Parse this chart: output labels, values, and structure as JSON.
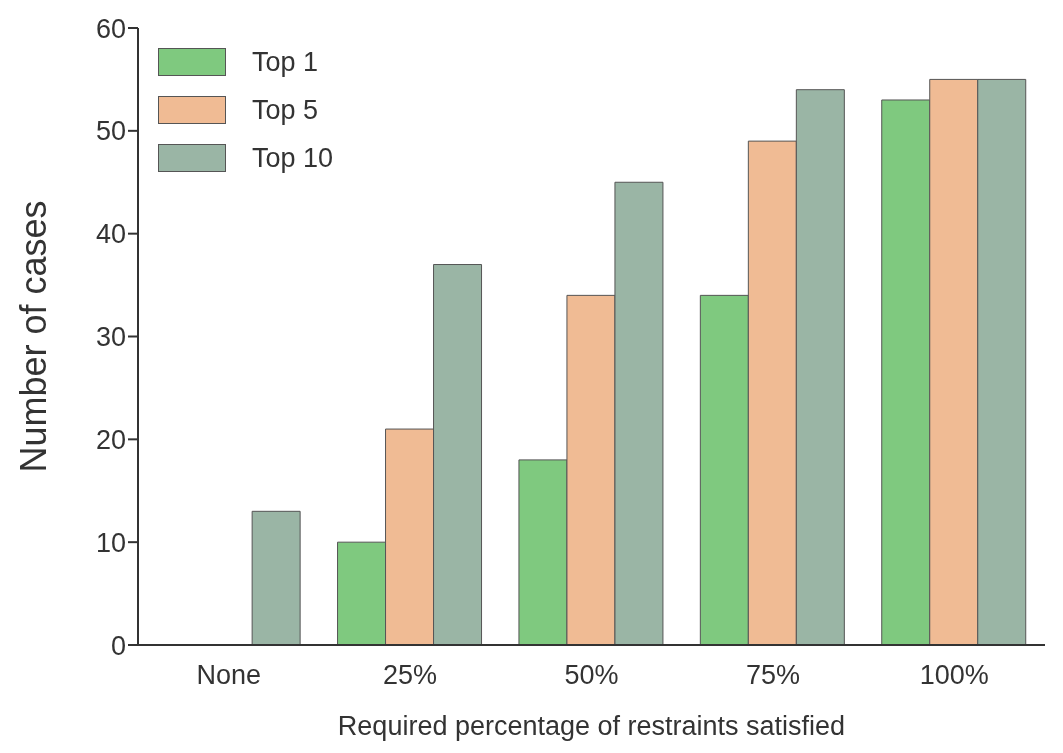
{
  "chart_data": {
    "type": "bar",
    "xlabel": "Required percentage of restraints satisfied",
    "ylabel": "Number of cases",
    "categories": [
      "None",
      "25%",
      "50%",
      "75%",
      "100%"
    ],
    "series": [
      {
        "name": "Top 1",
        "color": "#7fc97f",
        "values": [
          0,
          10,
          18,
          34,
          53
        ]
      },
      {
        "name": "Top 5",
        "color": "#f0bb94",
        "values": [
          0,
          21,
          34,
          49,
          55
        ]
      },
      {
        "name": "Top 10",
        "color": "#9ab5a5",
        "values": [
          13,
          37,
          45,
          54,
          55
        ]
      }
    ],
    "ylim": [
      0,
      60
    ],
    "yticks": [
      0,
      10,
      20,
      30,
      40,
      50,
      60
    ],
    "grid": false,
    "legend": "top left"
  }
}
